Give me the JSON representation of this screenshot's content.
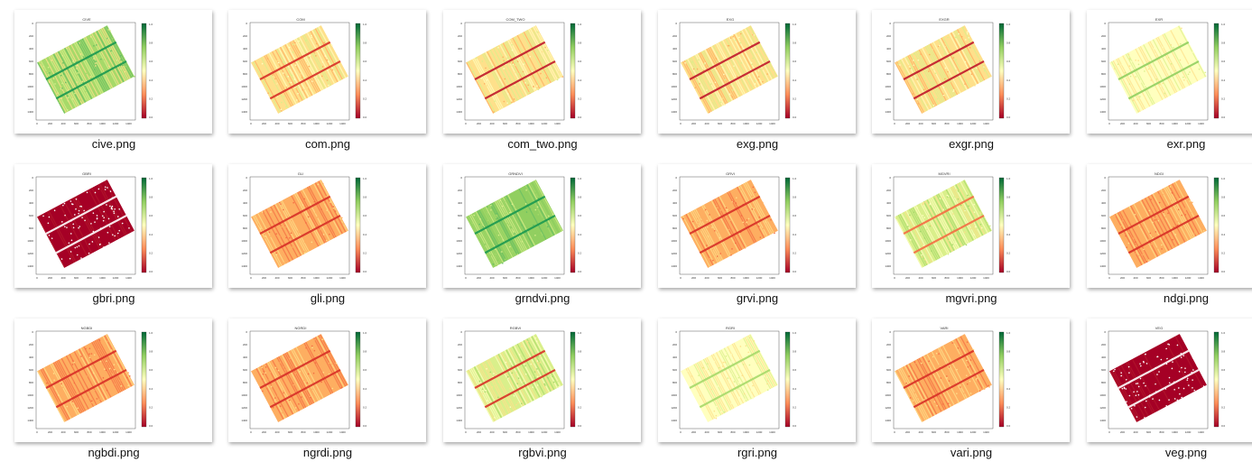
{
  "files": [
    {
      "name": "cive.png",
      "title": "CIVE",
      "palette": "greenish",
      "row_color": "#1a9850"
    },
    {
      "name": "com.png",
      "title": "COM",
      "palette": "yellow",
      "row_color": "#d73027"
    },
    {
      "name": "com_two.png",
      "title": "COM_TWO",
      "palette": "yellow",
      "row_color": "#c0182a"
    },
    {
      "name": "exg.png",
      "title": "EXG",
      "palette": "yellow",
      "row_color": "#c0182a"
    },
    {
      "name": "exgr.png",
      "title": "EXGR",
      "palette": "yellow",
      "row_color": "#c0182a"
    },
    {
      "name": "exr.png",
      "title": "EXR",
      "palette": "paleyellow",
      "row_color": "#91cf60"
    },
    {
      "name": "gbri.png",
      "title": "GBRI",
      "palette": "red",
      "row_color": "#ffffff"
    },
    {
      "name": "gli.png",
      "title": "GLI",
      "palette": "orange",
      "row_color": "#d73027"
    },
    {
      "name": "grndvi.png",
      "title": "GRNDVI",
      "palette": "green",
      "row_color": "#1a9850"
    },
    {
      "name": "grvi.png",
      "title": "GRVI",
      "palette": "orange",
      "row_color": "#d73027"
    },
    {
      "name": "mgvri.png",
      "title": "MGVRI",
      "palette": "lightgreen",
      "row_color": "#f46d43"
    },
    {
      "name": "ndgi.png",
      "title": "NDGI",
      "palette": "orange",
      "row_color": "#d73027"
    },
    {
      "name": "ngbdi.png",
      "title": "NGBDI",
      "palette": "orange",
      "row_color": "#d73027"
    },
    {
      "name": "ngrdi.png",
      "title": "NGRDI",
      "palette": "orange",
      "row_color": "#d73027"
    },
    {
      "name": "rgbvi.png",
      "title": "RGBVI",
      "palette": "lightgreen",
      "row_color": "#d73027"
    },
    {
      "name": "rgri.png",
      "title": "RGRI",
      "palette": "paleyellow",
      "row_color": "#a6d96a"
    },
    {
      "name": "vari.png",
      "title": "VARI",
      "palette": "orange",
      "row_color": "#d73027"
    },
    {
      "name": "veg.png",
      "title": "VEG",
      "palette": "red",
      "row_color": "#ffffff"
    }
  ],
  "axis": {
    "yticks": [
      "0",
      "200",
      "400",
      "600",
      "800",
      "1000",
      "1200",
      "1400"
    ],
    "xticks": [
      "0",
      "200",
      "400",
      "600",
      "800",
      "1000",
      "1200",
      "1400"
    ],
    "cbar_ticks": [
      "1.0",
      "0.8",
      "0.6",
      "0.4",
      "0.2",
      "0.0"
    ]
  },
  "palettes": {
    "greenish": [
      "#a6d96a",
      "#d9ef8b",
      "#66bd63",
      "#fee08b"
    ],
    "yellow": [
      "#fee08b",
      "#ffffbf",
      "#fdae61",
      "#d9ef8b"
    ],
    "paleyellow": [
      "#ffffbf",
      "#fee08b",
      "#d9ef8b",
      "#ffffbf"
    ],
    "red": [
      "#a50026",
      "#a50026",
      "#b2182b",
      "#a50026"
    ],
    "orange": [
      "#fdae61",
      "#fee08b",
      "#f46d43",
      "#fdae61"
    ],
    "green": [
      "#91cf60",
      "#a6d96a",
      "#66bd63",
      "#d9ef8b"
    ],
    "lightgreen": [
      "#d9ef8b",
      "#ffffbf",
      "#a6d96a",
      "#fee08b"
    ]
  }
}
